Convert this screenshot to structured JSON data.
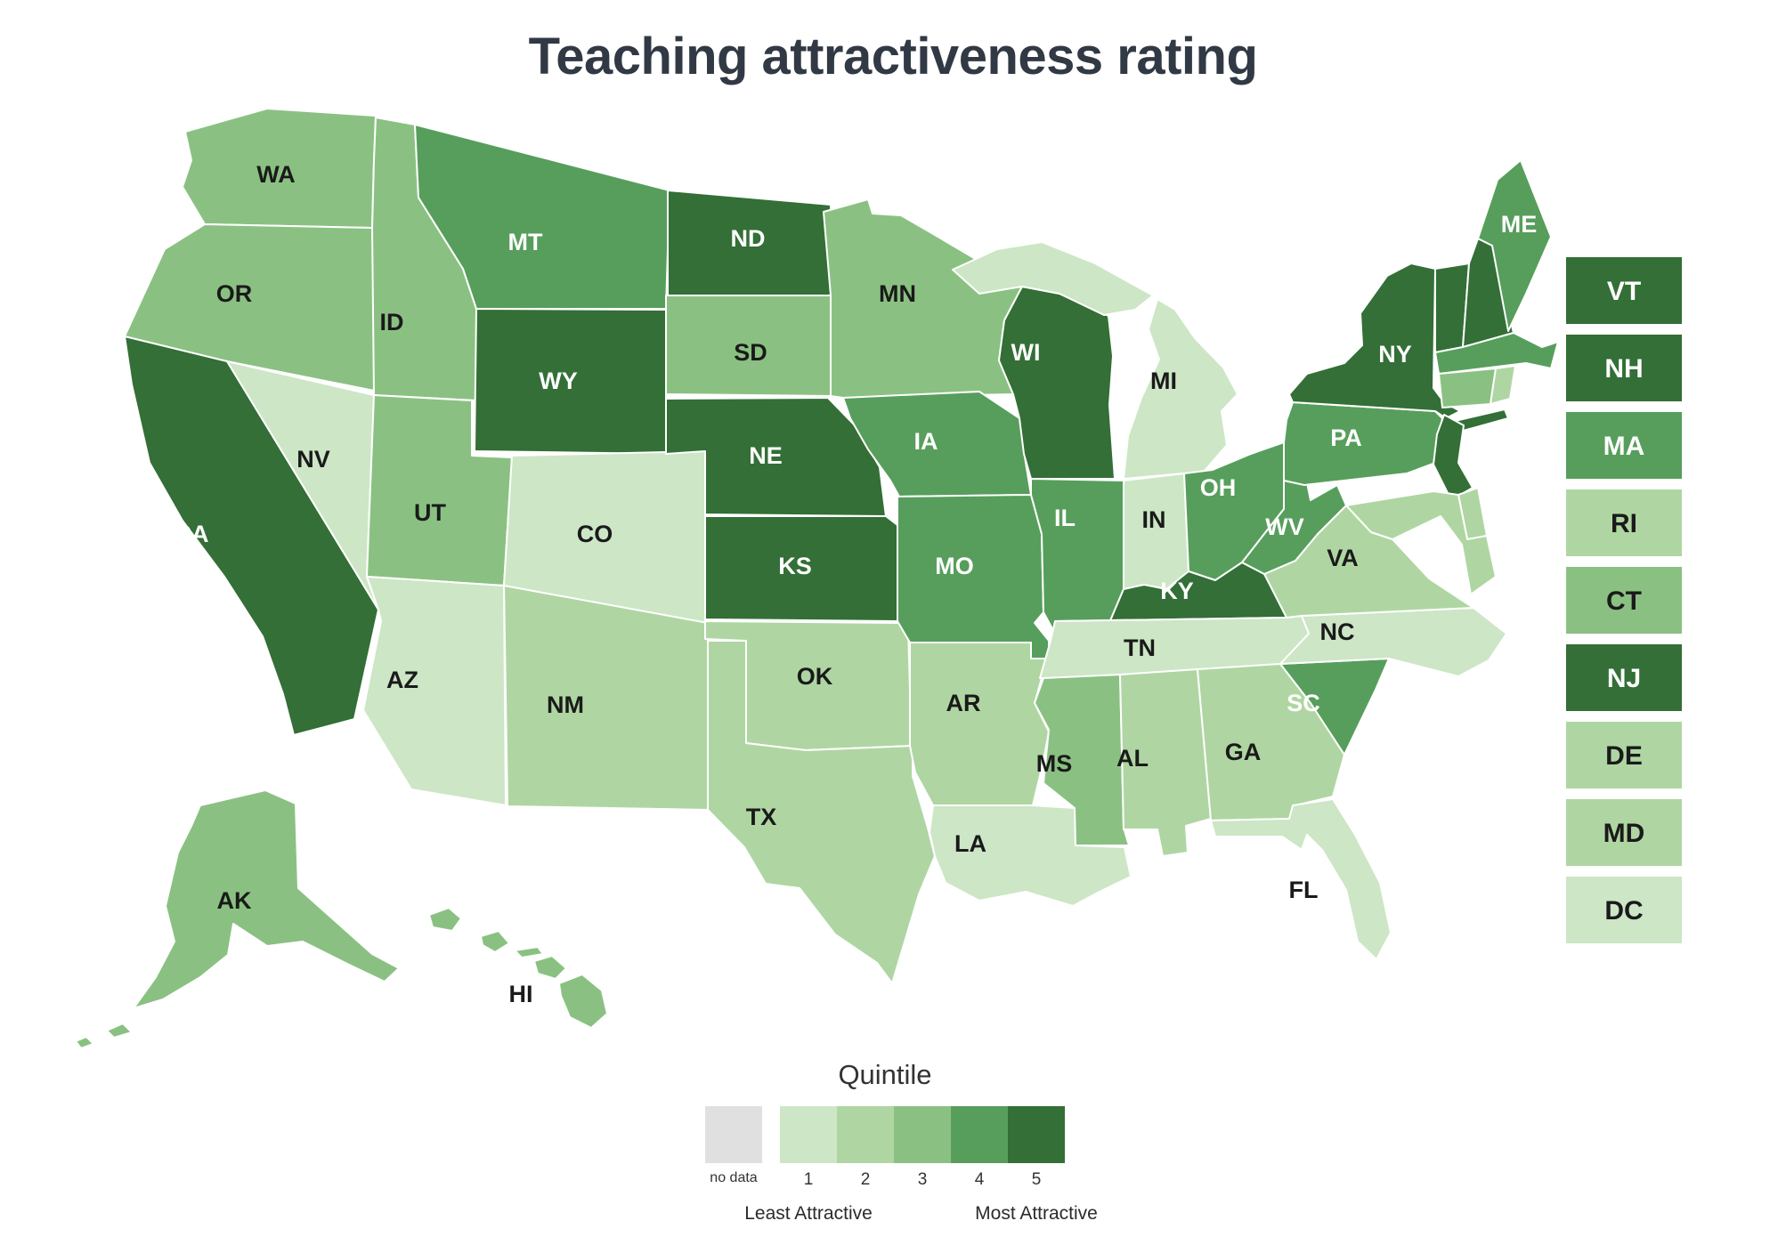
{
  "title": "Teaching attractiveness rating",
  "chart_data": {
    "type": "choropleth",
    "geo": "us-states",
    "title": "Teaching attractiveness rating",
    "legend": {
      "title": "Quintile",
      "no_data_label": "no data",
      "no_data_color": "#e0e0e0",
      "quintile_labels": [
        "1",
        "2",
        "3",
        "4",
        "5"
      ],
      "colors": {
        "1": "#cde6c6",
        "2": "#afd6a2",
        "3": "#8ac182",
        "4": "#579e5c",
        "5": "#336f36"
      },
      "least_label": "Least Attractive",
      "most_label": "Most Attractive"
    },
    "label_colors": {
      "dark": "#1a1a1a",
      "light": "#ffffff"
    },
    "title_color": "#313944",
    "series": [
      {
        "abbr": "WA",
        "quintile": 3
      },
      {
        "abbr": "OR",
        "quintile": 3
      },
      {
        "abbr": "CA",
        "quintile": 5
      },
      {
        "abbr": "NV",
        "quintile": 1
      },
      {
        "abbr": "ID",
        "quintile": 3
      },
      {
        "abbr": "MT",
        "quintile": 4
      },
      {
        "abbr": "WY",
        "quintile": 5
      },
      {
        "abbr": "UT",
        "quintile": 3
      },
      {
        "abbr": "CO",
        "quintile": 1
      },
      {
        "abbr": "AZ",
        "quintile": 1
      },
      {
        "abbr": "NM",
        "quintile": 2
      },
      {
        "abbr": "ND",
        "quintile": 5
      },
      {
        "abbr": "SD",
        "quintile": 3
      },
      {
        "abbr": "NE",
        "quintile": 5
      },
      {
        "abbr": "KS",
        "quintile": 5
      },
      {
        "abbr": "OK",
        "quintile": 2
      },
      {
        "abbr": "TX",
        "quintile": 2
      },
      {
        "abbr": "MN",
        "quintile": 3
      },
      {
        "abbr": "IA",
        "quintile": 4
      },
      {
        "abbr": "MO",
        "quintile": 4
      },
      {
        "abbr": "AR",
        "quintile": 2
      },
      {
        "abbr": "LA",
        "quintile": 1
      },
      {
        "abbr": "WI",
        "quintile": 5
      },
      {
        "abbr": "IL",
        "quintile": 4
      },
      {
        "abbr": "MI",
        "quintile": 1
      },
      {
        "abbr": "IN",
        "quintile": 1
      },
      {
        "abbr": "OH",
        "quintile": 4
      },
      {
        "abbr": "KY",
        "quintile": 5
      },
      {
        "abbr": "TN",
        "quintile": 1
      },
      {
        "abbr": "MS",
        "quintile": 3
      },
      {
        "abbr": "AL",
        "quintile": 2
      },
      {
        "abbr": "GA",
        "quintile": 2
      },
      {
        "abbr": "FL",
        "quintile": 1
      },
      {
        "abbr": "SC",
        "quintile": 4
      },
      {
        "abbr": "NC",
        "quintile": 1
      },
      {
        "abbr": "VA",
        "quintile": 2
      },
      {
        "abbr": "WV",
        "quintile": 4
      },
      {
        "abbr": "PA",
        "quintile": 4
      },
      {
        "abbr": "NY",
        "quintile": 5
      },
      {
        "abbr": "VT",
        "quintile": 5
      },
      {
        "abbr": "NH",
        "quintile": 5
      },
      {
        "abbr": "ME",
        "quintile": 4
      },
      {
        "abbr": "MA",
        "quintile": 4
      },
      {
        "abbr": "RI",
        "quintile": 2
      },
      {
        "abbr": "CT",
        "quintile": 3
      },
      {
        "abbr": "NJ",
        "quintile": 5
      },
      {
        "abbr": "DE",
        "quintile": 2
      },
      {
        "abbr": "MD",
        "quintile": 2
      },
      {
        "abbr": "DC",
        "quintile": 1
      },
      {
        "abbr": "AK",
        "quintile": 3
      },
      {
        "abbr": "HI",
        "quintile": 3
      }
    ],
    "small_state_boxes": [
      "VT",
      "NH",
      "MA",
      "RI",
      "CT",
      "NJ",
      "DE",
      "MD",
      "DC"
    ]
  }
}
